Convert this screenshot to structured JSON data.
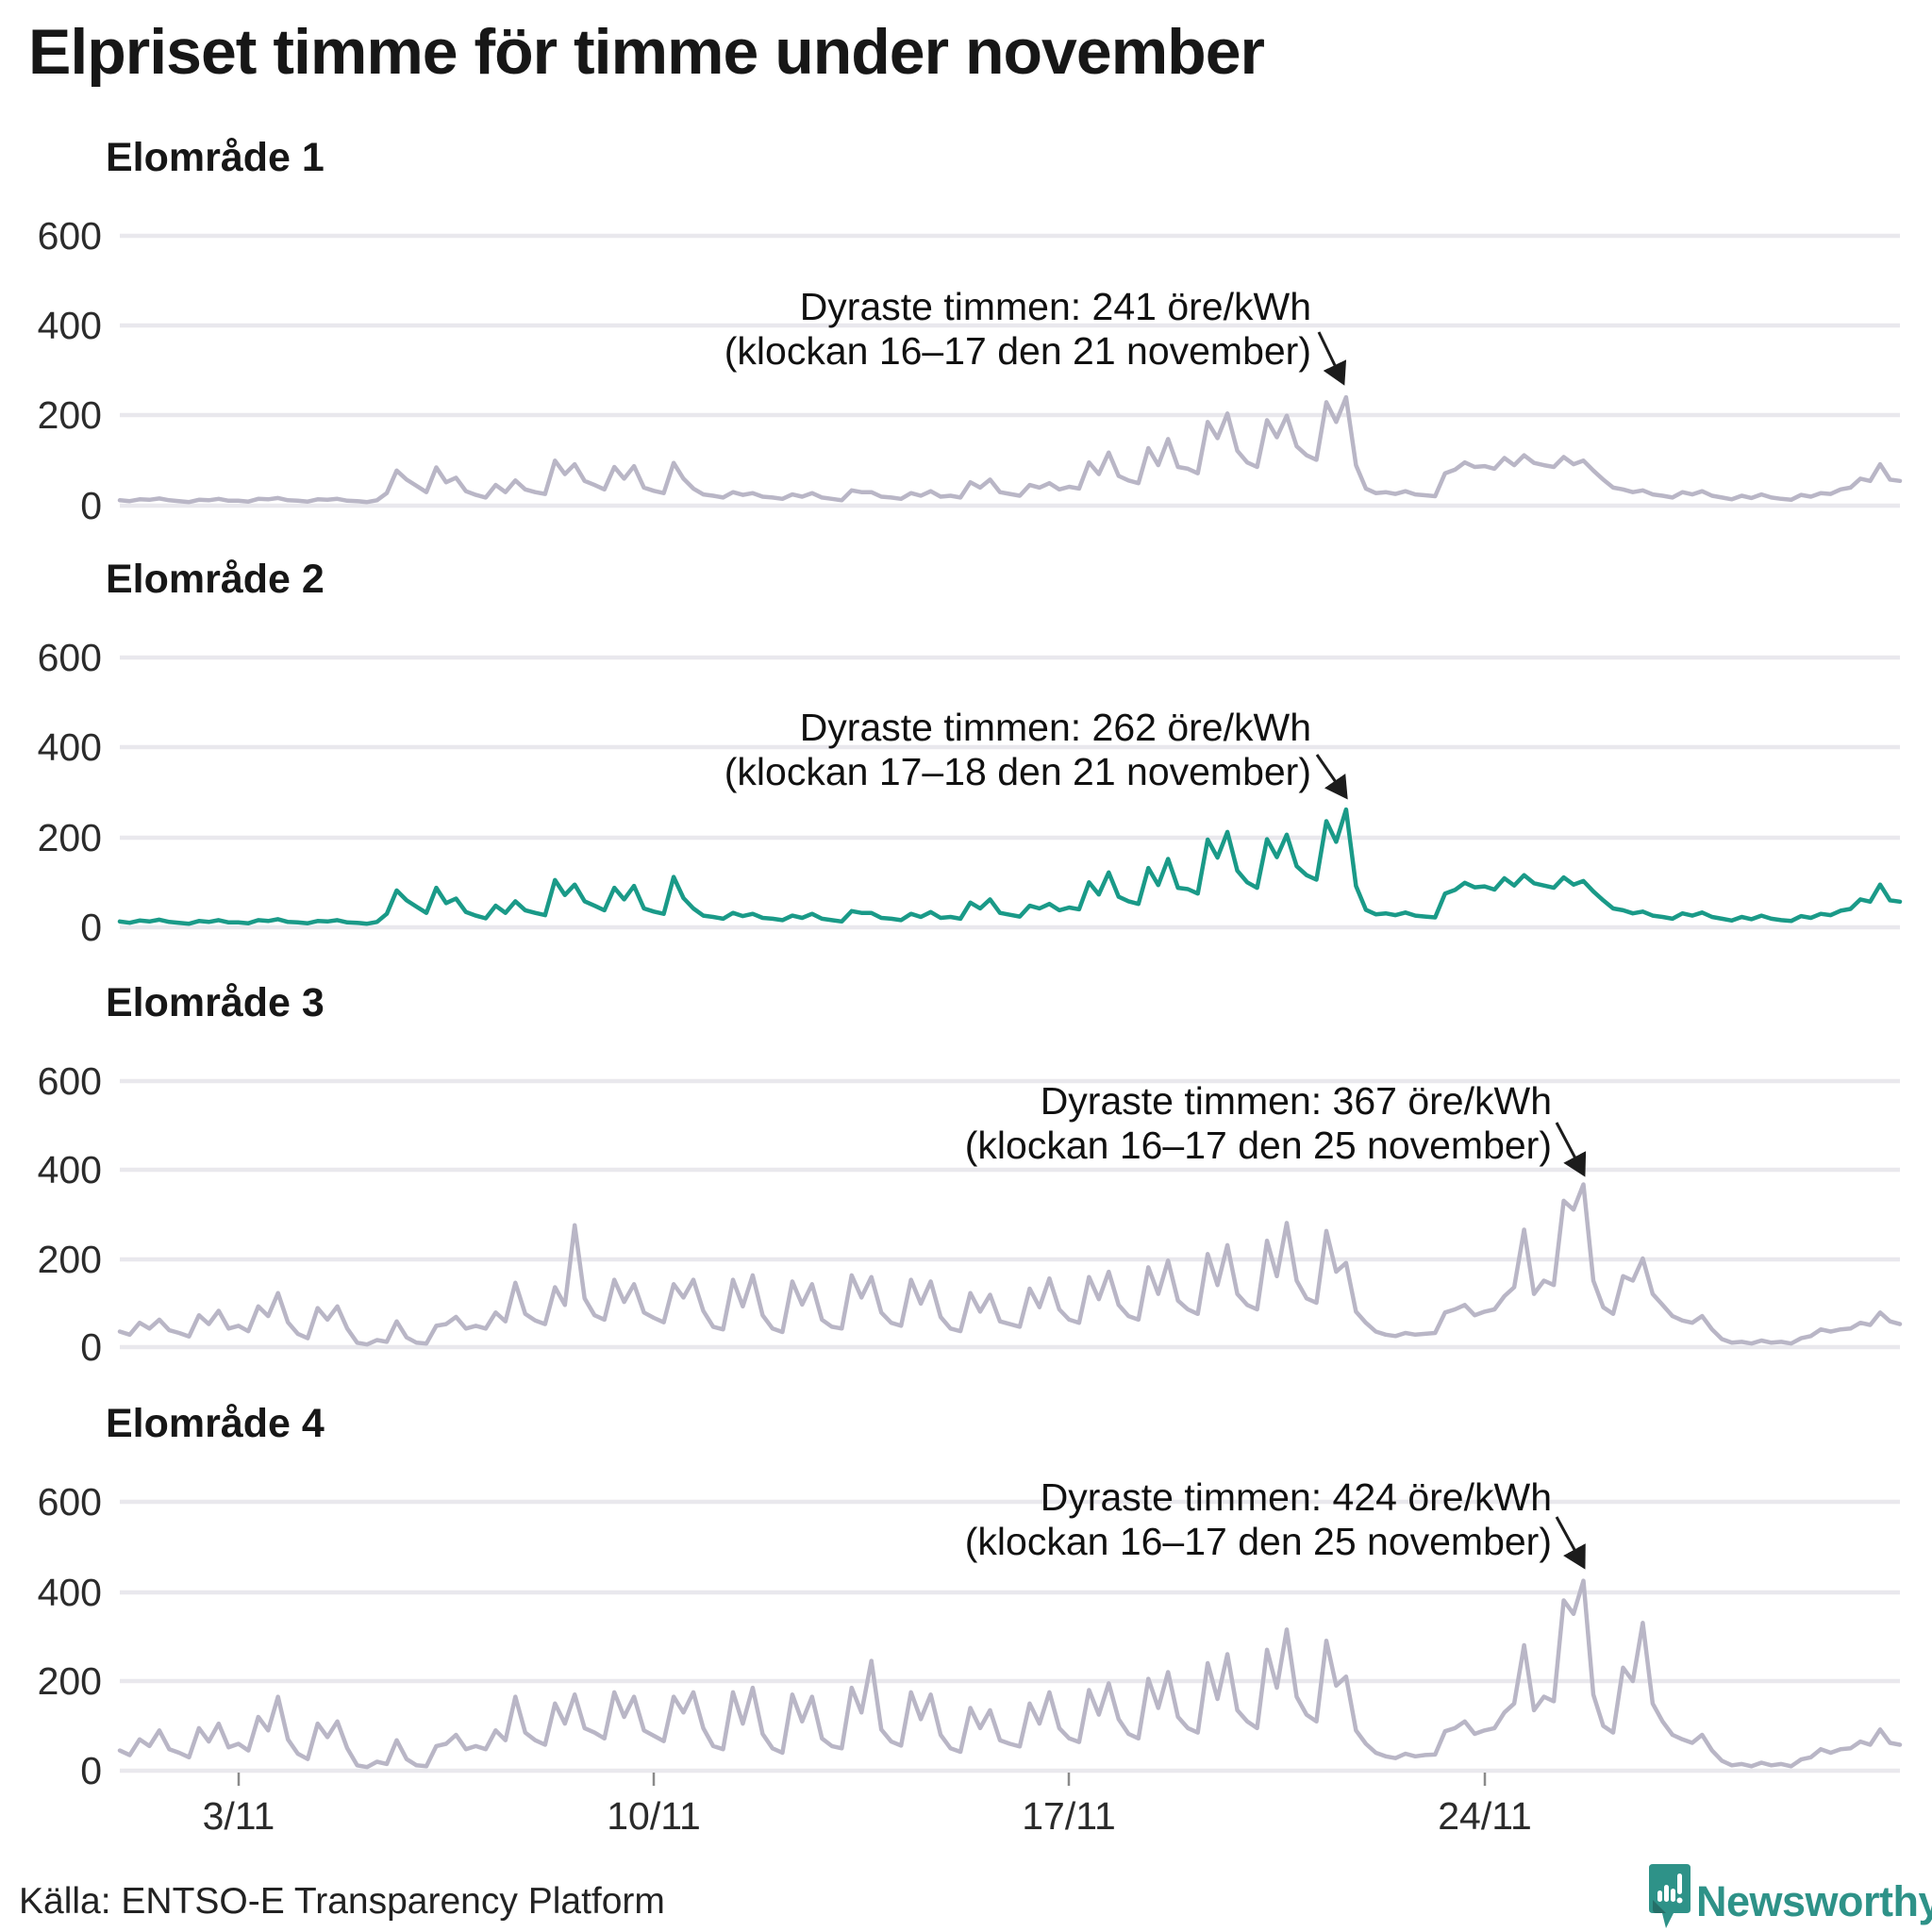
{
  "title": "Elpriset timme för timme under november",
  "source": "Källa: ENTSO-E Transparency Platform",
  "brand": {
    "name": "Newsworthy"
  },
  "colors": {
    "muted_line": "#b9b6c6",
    "accent_line": "#1a9a88",
    "grid": "#e9e8ed",
    "tick": "#8a8a8a",
    "arrow": "#1c1c1c",
    "logo_badge": "#2E9288",
    "logo_badge_dark": "#256f68",
    "text": "#171717"
  },
  "axis": {
    "y_ticks": [
      "600",
      "400",
      "200",
      "0"
    ],
    "x_ticks": [
      "3/11",
      "10/11",
      "17/11",
      "24/11"
    ]
  },
  "charts": [
    {
      "title": "Elområde 1",
      "annotation_line1": "Dyraste timmen: 241 öre/kWh",
      "annotation_line2": "(klockan 16–17 den 21 november)"
    },
    {
      "title": "Elområde 2",
      "annotation_line1": "Dyraste timmen: 262 öre/kWh",
      "annotation_line2": "(klockan 17–18 den 21 november)"
    },
    {
      "title": "Elområde 3",
      "annotation_line1": "Dyraste timmen: 367 öre/kWh",
      "annotation_line2": "(klockan 16–17 den 25 november)"
    },
    {
      "title": "Elområde 4",
      "annotation_line1": "Dyraste timmen: 424 öre/kWh",
      "annotation_line2": "(klockan 16–17 den 25 november)"
    }
  ],
  "chart_data": {
    "type": "line",
    "title": "Elpriset timme för timme under november",
    "unit": "öre/kWh",
    "x_range": [
      "1/11",
      "30/11"
    ],
    "x_tick_labels": [
      "3/11",
      "10/11",
      "17/11",
      "24/11"
    ],
    "ylim": [
      0,
      600
    ],
    "grid": true,
    "samples_per_day": 6,
    "series": [
      {
        "name": "Elområde 1",
        "color": "#b9b6c6",
        "peak": {
          "value": 241,
          "time": "klockan 16–17 den 21 november"
        },
        "values": [
          12,
          10,
          14,
          13,
          16,
          12,
          10,
          8,
          13,
          12,
          15,
          11,
          11,
          9,
          15,
          14,
          17,
          12,
          11,
          9,
          14,
          13,
          15,
          11,
          10,
          8,
          12,
          28,
          78,
          58,
          44,
          30,
          85,
          52,
          62,
          32,
          24,
          18,
          46,
          30,
          56,
          36,
          30,
          26,
          100,
          70,
          92,
          55,
          46,
          36,
          86,
          60,
          88,
          40,
          33,
          28,
          95,
          60,
          38,
          25,
          22,
          18,
          30,
          24,
          28,
          20,
          18,
          15,
          25,
          20,
          28,
          18,
          15,
          12,
          34,
          30,
          30,
          20,
          18,
          15,
          28,
          22,
          32,
          20,
          22,
          18,
          52,
          40,
          58,
          30,
          26,
          22,
          46,
          40,
          50,
          36,
          42,
          38,
          96,
          70,
          118,
          66,
          56,
          50,
          128,
          90,
          148,
          86,
          82,
          72,
          186,
          150,
          205,
          122,
          96,
          86,
          190,
          152,
          200,
          132,
          112,
          102,
          230,
          186,
          241,
          90,
          38,
          28,
          30,
          26,
          32,
          25,
          23,
          21,
          72,
          80,
          96,
          86,
          88,
          82,
          106,
          90,
          112,
          95,
          90,
          86,
          108,
          92,
          100,
          78,
          58,
          40,
          36,
          30,
          34,
          25,
          22,
          18,
          30,
          25,
          32,
          22,
          18,
          14,
          22,
          17,
          25,
          18,
          15,
          13,
          24,
          20,
          28,
          26,
          36,
          40,
          60,
          55,
          92,
          58,
          55
        ]
      },
      {
        "name": "Elområde 2",
        "color": "#1a9a88",
        "peak": {
          "value": 262,
          "time": "klockan 17–18 den 21 november"
        },
        "values": [
          13,
          10,
          15,
          13,
          17,
          12,
          10,
          8,
          14,
          12,
          16,
          11,
          11,
          9,
          16,
          14,
          18,
          12,
          11,
          9,
          14,
          13,
          16,
          11,
          10,
          8,
          12,
          30,
          82,
          60,
          46,
          32,
          88,
          54,
          64,
          34,
          26,
          20,
          48,
          32,
          58,
          38,
          32,
          27,
          105,
          72,
          95,
          58,
          48,
          38,
          88,
          62,
          92,
          42,
          35,
          30,
          112,
          65,
          42,
          26,
          23,
          19,
          32,
          25,
          30,
          21,
          19,
          16,
          26,
          21,
          30,
          19,
          16,
          13,
          36,
          32,
          32,
          21,
          19,
          16,
          30,
          23,
          34,
          21,
          23,
          19,
          55,
          42,
          62,
          32,
          28,
          24,
          48,
          42,
          52,
          38,
          44,
          40,
          100,
          73,
          122,
          68,
          58,
          52,
          132,
          94,
          152,
          88,
          85,
          75,
          195,
          155,
          212,
          126,
          100,
          88,
          196,
          156,
          206,
          136,
          116,
          106,
          236,
          190,
          262,
          92,
          39,
          29,
          31,
          27,
          33,
          26,
          24,
          22,
          75,
          83,
          99,
          89,
          91,
          84,
          109,
          93,
          116,
          98,
          93,
          88,
          111,
          95,
          103,
          80,
          60,
          42,
          38,
          31,
          35,
          26,
          23,
          19,
          31,
          26,
          33,
          23,
          19,
          15,
          23,
          18,
          26,
          19,
          16,
          14,
          25,
          21,
          30,
          27,
          37,
          41,
          62,
          57,
          95,
          60,
          57
        ]
      },
      {
        "name": "Elområde 3",
        "color": "#b9b6c6",
        "peak": {
          "value": 367,
          "time": "klockan 16–17 den 25 november"
        },
        "values": [
          35,
          28,
          55,
          42,
          62,
          38,
          32,
          24,
          72,
          52,
          82,
          42,
          48,
          36,
          92,
          70,
          122,
          56,
          30,
          20,
          88,
          62,
          92,
          42,
          10,
          6,
          16,
          12,
          58,
          22,
          10,
          8,
          48,
          52,
          68,
          42,
          48,
          42,
          78,
          58,
          145,
          75,
          60,
          52,
          135,
          95,
          275,
          110,
          72,
          62,
          152,
          102,
          142,
          78,
          66,
          56,
          142,
          112,
          152,
          82,
          46,
          40,
          152,
          92,
          162,
          72,
          42,
          34,
          148,
          96,
          142,
          62,
          46,
          42,
          162,
          112,
          158,
          78,
          55,
          48,
          152,
          98,
          148,
          68,
          42,
          36,
          122,
          80,
          118,
          58,
          52,
          46,
          132,
          90,
          155,
          85,
          62,
          55,
          158,
          108,
          170,
          95,
          70,
          62,
          180,
          120,
          195,
          105,
          85,
          75,
          210,
          140,
          230,
          120,
          95,
          85,
          240,
          160,
          280,
          150,
          110,
          100,
          262,
          170,
          190,
          80,
          55,
          35,
          28,
          25,
          32,
          28,
          30,
          32,
          78,
          85,
          95,
          72,
          80,
          85,
          115,
          135,
          265,
          120,
          150,
          140,
          330,
          310,
          367,
          150,
          90,
          75,
          160,
          150,
          200,
          120,
          95,
          70,
          60,
          55,
          70,
          40,
          18,
          10,
          12,
          8,
          15,
          10,
          12,
          8,
          20,
          25,
          40,
          35,
          40,
          42,
          55,
          50,
          78,
          58,
          52
        ]
      },
      {
        "name": "Elområde 4",
        "color": "#b9b6c6",
        "peak": {
          "value": 424,
          "time": "klockan 16–17 den 25 november"
        },
        "values": [
          45,
          35,
          70,
          55,
          90,
          48,
          40,
          30,
          95,
          65,
          105,
          52,
          60,
          45,
          120,
          90,
          165,
          70,
          38,
          26,
          105,
          75,
          110,
          50,
          12,
          8,
          20,
          15,
          68,
          26,
          12,
          10,
          55,
          60,
          80,
          48,
          55,
          48,
          90,
          68,
          165,
          85,
          68,
          58,
          150,
          105,
          170,
          95,
          85,
          72,
          175,
          120,
          165,
          90,
          78,
          66,
          165,
          130,
          175,
          95,
          55,
          48,
          175,
          105,
          185,
          82,
          50,
          40,
          170,
          110,
          165,
          72,
          55,
          50,
          185,
          130,
          245,
          92,
          65,
          56,
          175,
          115,
          170,
          80,
          50,
          42,
          140,
          95,
          135,
          68,
          60,
          54,
          150,
          105,
          175,
          95,
          72,
          64,
          180,
          125,
          195,
          115,
          82,
          72,
          205,
          140,
          220,
          120,
          95,
          85,
          240,
          160,
          260,
          135,
          110,
          95,
          270,
          185,
          315,
          165,
          125,
          110,
          290,
          190,
          210,
          90,
          60,
          40,
          32,
          28,
          38,
          32,
          35,
          36,
          88,
          95,
          110,
          82,
          90,
          95,
          130,
          150,
          280,
          135,
          165,
          155,
          380,
          350,
          424,
          170,
          100,
          85,
          230,
          200,
          330,
          150,
          110,
          80,
          70,
          62,
          80,
          45,
          22,
          12,
          15,
          10,
          18,
          12,
          15,
          10,
          25,
          30,
          48,
          40,
          48,
          50,
          65,
          58,
          92,
          62,
          58
        ]
      }
    ]
  }
}
